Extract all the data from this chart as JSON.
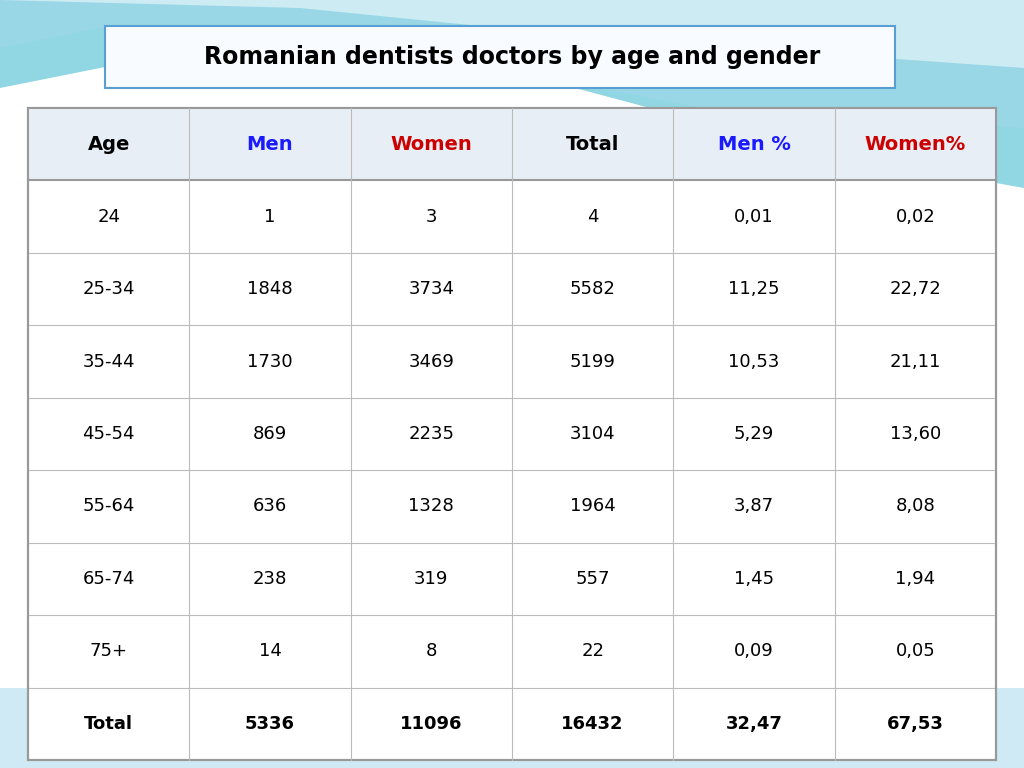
{
  "title": "Romanian dentists doctors by age and gender",
  "columns": [
    "Age",
    "Men",
    "Women",
    "Total",
    "Men %",
    "Women%"
  ],
  "header_col_colors": [
    "black",
    "#1a1aff",
    "#cc0000",
    "black",
    "#1a1aff",
    "#cc0000"
  ],
  "data_col_colors": [
    "black",
    "black",
    "black",
    "black",
    "black",
    "black"
  ],
  "rows": [
    [
      "24",
      "1",
      "3",
      "4",
      "0,01",
      "0,02"
    ],
    [
      "25-34",
      "1848",
      "3734",
      "5582",
      "11,25",
      "22,72"
    ],
    [
      "35-44",
      "1730",
      "3469",
      "5199",
      "10,53",
      "21,11"
    ],
    [
      "45-54",
      "869",
      "2235",
      "3104",
      "5,29",
      "13,60"
    ],
    [
      "55-64",
      "636",
      "1328",
      "1964",
      "3,87",
      "8,08"
    ],
    [
      "65-74",
      "238",
      "319",
      "557",
      "1,45",
      "1,94"
    ],
    [
      "75+",
      "14",
      "8",
      "22",
      "0,09",
      "0,05"
    ],
    [
      "Total",
      "5336",
      "11096",
      "16432",
      "32,47",
      "67,53"
    ]
  ],
  "row_bold": [
    false,
    false,
    false,
    false,
    false,
    false,
    false,
    true
  ],
  "slide_bg": "#ffffff",
  "table_bg": "#ffffff",
  "table_border_color": "#999999",
  "table_line_color": "#bbbbbb",
  "title_box_edge": "#5a9fd4",
  "title_box_face": "#f8fbff",
  "cyan_top": "#7ecfdf",
  "cyan_mid": "#a8dde8",
  "header_row_bg": "#e8eef5",
  "font_size_header": 14,
  "font_size_data": 13,
  "font_size_title": 17
}
